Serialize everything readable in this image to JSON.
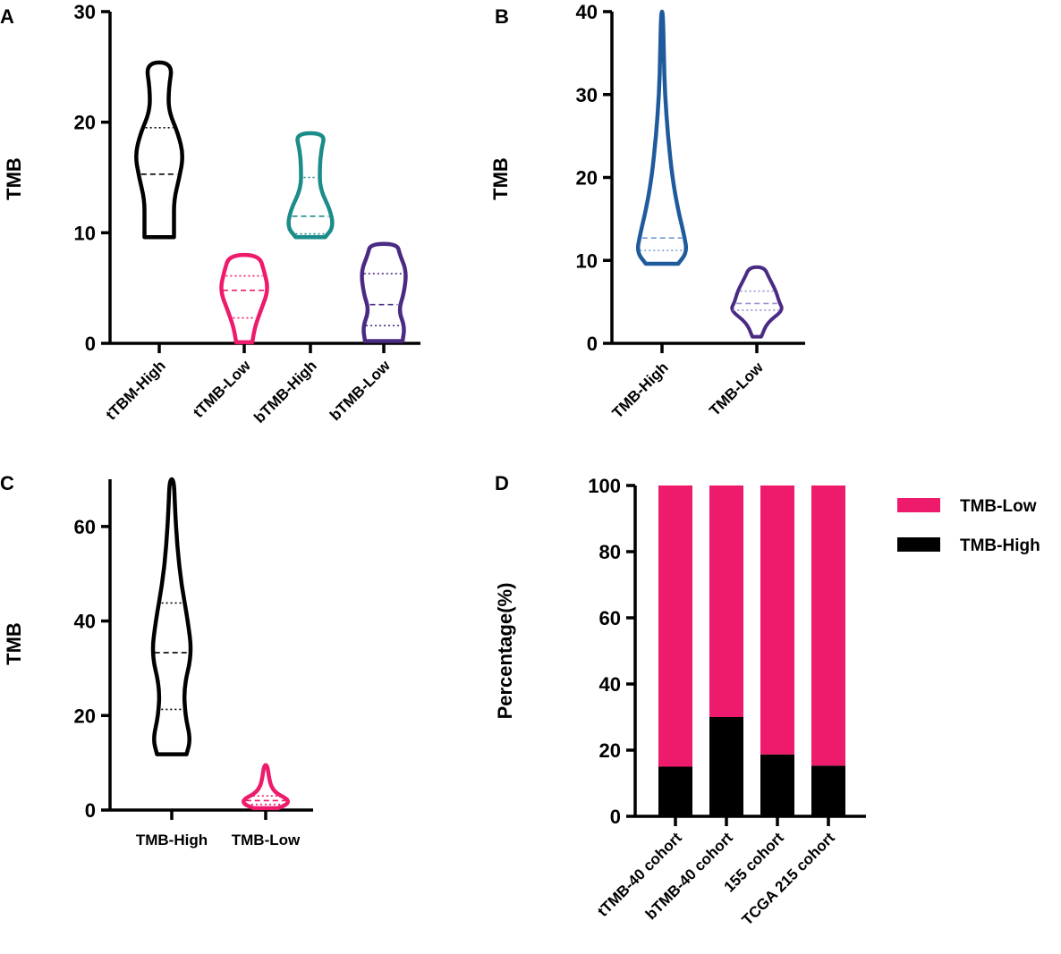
{
  "colors": {
    "black": "#000000",
    "pink": "#ee1a6b",
    "teal": "#1a8c8a",
    "purple": "#4a2b84",
    "blue": "#1f5b9c",
    "lightpurple": "#9b8fd0"
  },
  "chart_data": [
    {
      "panel": "A",
      "type": "violin",
      "ylabel": "TMB",
      "ylim": [
        0,
        30
      ],
      "yticks": [
        "0",
        "10",
        "20",
        "30"
      ],
      "categories": [
        "tTBM-High",
        "tTMB-Low",
        "bTMB-High",
        "bTMB-Low"
      ],
      "series": [
        {
          "name": "tTBM-High",
          "color": "#000000",
          "min": 9.6,
          "max": 25.4,
          "q1": null,
          "median": 15.3,
          "q3": 19.5,
          "profile": [
            [
              9.6,
              0.55
            ],
            [
              11,
              0.55
            ],
            [
              13,
              0.55
            ],
            [
              15,
              0.75
            ],
            [
              17,
              0.9
            ],
            [
              19,
              0.7
            ],
            [
              21,
              0.35
            ],
            [
              23,
              0.35
            ],
            [
              25.4,
              0.5
            ]
          ]
        },
        {
          "name": "tTMB-Low",
          "color": "#ee1a6b",
          "min": 0.1,
          "max": 8.0,
          "q1": 2.3,
          "median": 4.8,
          "q3": 6.1,
          "profile": [
            [
              0.1,
              0.3
            ],
            [
              1.5,
              0.4
            ],
            [
              3,
              0.62
            ],
            [
              4.8,
              0.9
            ],
            [
              6.5,
              0.75
            ],
            [
              8,
              0.55
            ]
          ]
        },
        {
          "name": "bTMB-High",
          "color": "#1a8c8a",
          "min": 9.6,
          "max": 19.0,
          "q1": 9.9,
          "median": 11.5,
          "q3": 15.0,
          "profile": [
            [
              9.6,
              0.55
            ],
            [
              10.5,
              0.85
            ],
            [
              12,
              0.75
            ],
            [
              14,
              0.35
            ],
            [
              16,
              0.35
            ],
            [
              17.5,
              0.4
            ],
            [
              19,
              0.55
            ]
          ]
        },
        {
          "name": "bTMB-Low",
          "color": "#4a2b84",
          "min": 0.2,
          "max": 9.0,
          "q1": 1.6,
          "median": 3.5,
          "q3": 6.3,
          "profile": [
            [
              0.2,
              0.7
            ],
            [
              1.5,
              0.78
            ],
            [
              3,
              0.55
            ],
            [
              4.5,
              0.75
            ],
            [
              6.5,
              0.85
            ],
            [
              8,
              0.6
            ],
            [
              9,
              0.5
            ]
          ]
        }
      ]
    },
    {
      "panel": "B",
      "type": "violin",
      "ylabel": "TMB",
      "ylim": [
        0,
        40
      ],
      "yticks": [
        "0",
        "10",
        "20",
        "30",
        "40"
      ],
      "categories": [
        "TMB-High",
        "TMB-Low"
      ],
      "series": [
        {
          "name": "TMB-High",
          "color": "#1f5b9c",
          "min": 9.6,
          "max": 40,
          "q1": 11.2,
          "median": 12.7,
          "q3": null,
          "profile": [
            [
              9.6,
              0.55
            ],
            [
              11,
              0.85
            ],
            [
              13,
              0.75
            ],
            [
              16,
              0.55
            ],
            [
              20,
              0.35
            ],
            [
              25,
              0.2
            ],
            [
              30,
              0.1
            ],
            [
              35,
              0.06
            ],
            [
              40,
              0.03
            ]
          ]
        },
        {
          "name": "TMB-Low",
          "color": "#4a2b84",
          "min": 0.8,
          "max": 9.2,
          "q1": 4.0,
          "median": 4.8,
          "q3": 6.3,
          "profile": [
            [
              0.8,
              0.15
            ],
            [
              2.5,
              0.35
            ],
            [
              4,
              0.9
            ],
            [
              5,
              0.75
            ],
            [
              6.3,
              0.65
            ],
            [
              8,
              0.4
            ],
            [
              9.2,
              0.25
            ]
          ]
        }
      ]
    },
    {
      "panel": "C",
      "type": "violin",
      "ylabel": "TMB",
      "ylim": [
        0,
        70
      ],
      "yticks": [
        "0",
        "20",
        "40",
        "60"
      ],
      "categories": [
        "TMB-High",
        "TMB-Low"
      ],
      "series": [
        {
          "name": "TMB-High",
          "color": "#000000",
          "min": 11.8,
          "max": 70,
          "q1": 21.3,
          "median": 33.3,
          "q3": 43.8,
          "profile": [
            [
              11.8,
              0.55
            ],
            [
              15,
              0.7
            ],
            [
              20,
              0.5
            ],
            [
              26,
              0.45
            ],
            [
              33,
              0.75
            ],
            [
              40,
              0.6
            ],
            [
              48,
              0.35
            ],
            [
              56,
              0.2
            ],
            [
              64,
              0.12
            ],
            [
              70,
              0.08
            ]
          ]
        },
        {
          "name": "TMB-Low",
          "color": "#ee1a6b",
          "min": 0.4,
          "max": 9.5,
          "q1": 1.2,
          "median": 2.0,
          "q3": 3.0,
          "profile": [
            [
              0.4,
              0.45
            ],
            [
              1.2,
              0.8
            ],
            [
              2.2,
              0.85
            ],
            [
              3.5,
              0.4
            ],
            [
              5,
              0.2
            ],
            [
              7,
              0.12
            ],
            [
              9.5,
              0.06
            ]
          ]
        }
      ]
    },
    {
      "panel": "D",
      "type": "bar",
      "stacked": true,
      "ylabel": "Percentage(%)",
      "ylim": [
        0,
        100
      ],
      "yticks": [
        "0",
        "20",
        "40",
        "60",
        "80",
        "100"
      ],
      "categories": [
        "tTMB-40 cohort",
        "bTMB-40 cohort",
        "155 cohort",
        "TCGA 215 cohort"
      ],
      "series": [
        {
          "name": "TMB-High",
          "color": "#000000",
          "values": [
            15,
            30,
            18.7,
            15.3
          ]
        },
        {
          "name": "TMB-Low",
          "color": "#ee1a6b",
          "values": [
            85,
            70,
            81.3,
            84.7
          ]
        }
      ],
      "legend": [
        "TMB-Low",
        "TMB-High"
      ]
    }
  ]
}
